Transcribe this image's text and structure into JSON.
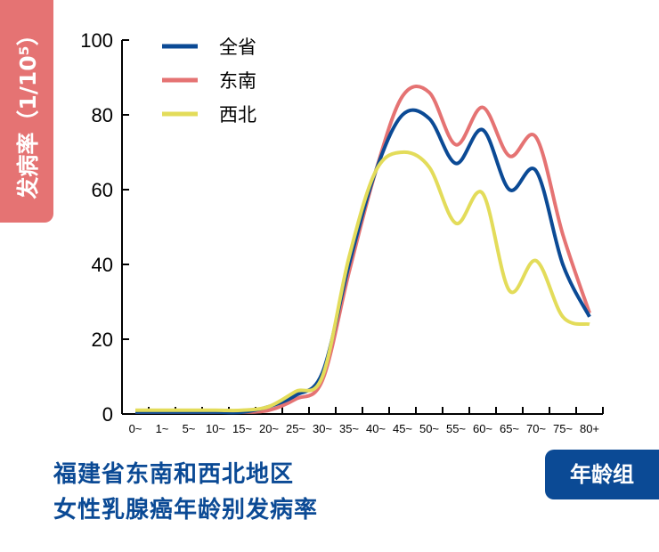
{
  "chart_data": {
    "type": "line",
    "title": [
      "福建省东南和西北地区",
      "女性乳腺癌年龄别发病率"
    ],
    "ylabel": "发病率（1/10⁵）",
    "xlabel": "年龄组",
    "ylim": [
      0,
      100
    ],
    "yticks": [
      0,
      20,
      40,
      60,
      80,
      100
    ],
    "categories": [
      "0~",
      "1~",
      "5~",
      "10~",
      "15~",
      "20~",
      "25~",
      "30~",
      "35~",
      "40~",
      "45~",
      "50~",
      "55~",
      "60~",
      "65~",
      "70~",
      "75~",
      "80+"
    ],
    "legend_position": "top-left",
    "grid": false,
    "series": [
      {
        "name": "全省",
        "color": "#0b4a95",
        "values": [
          0.5,
          0.5,
          0.5,
          0.5,
          0.5,
          2,
          5,
          11,
          40,
          65,
          80,
          79,
          67,
          76,
          60,
          65,
          40,
          26
        ]
      },
      {
        "name": "东南",
        "color": "#e57373",
        "values": [
          0.5,
          0.5,
          0.5,
          0.5,
          0.5,
          1,
          4,
          9,
          38,
          65,
          85,
          86,
          72,
          82,
          69,
          74,
          48,
          27
        ]
      },
      {
        "name": "西北",
        "color": "#e3dc5a",
        "values": [
          1,
          1,
          1,
          1,
          1,
          2,
          6,
          10,
          42,
          65,
          70,
          66,
          51,
          59,
          33,
          41,
          26,
          24
        ]
      }
    ]
  }
}
